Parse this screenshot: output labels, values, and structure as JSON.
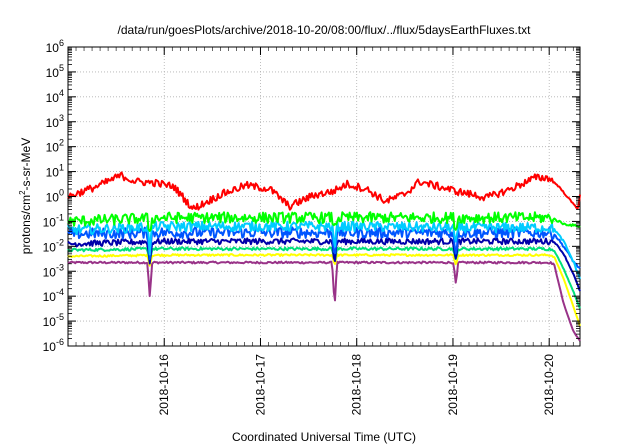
{
  "chart_data": {
    "type": "line",
    "title": "/data/run/goesPlots/archive/2018-10-20/08:00/flux/../flux/5daysEarthFluxes.txt",
    "xlabel": "Coordinated Universal Time (UTC)",
    "ylabel_base": "protons/cm",
    "ylabel_sup": "2",
    "ylabel_rest": "-s-sr-MeV",
    "y_scale": "log",
    "ylim_exp": [
      -6,
      6
    ],
    "y_tick_exps": [
      -6,
      -5,
      -4,
      -3,
      -2,
      -1,
      0,
      1,
      2,
      3,
      4,
      5,
      6
    ],
    "y_tick_base": "10",
    "xlim_days": [
      15.0,
      20.32
    ],
    "x_tick_labels": [
      {
        "day": 16,
        "label": "2018-10-16"
      },
      {
        "day": 17,
        "label": "2018-10-17"
      },
      {
        "day": 18,
        "label": "2018-10-18"
      },
      {
        "day": 19,
        "label": "2018-10-19"
      },
      {
        "day": 20,
        "label": "2018-10-20"
      }
    ],
    "grid": true,
    "series": [
      {
        "color": "#ff0000",
        "base_log": 0.1,
        "noise": 0.15,
        "keypoints": [
          [
            15.0,
            0.0
          ],
          [
            15.3,
            0.4
          ],
          [
            15.55,
            0.85
          ],
          [
            15.7,
            0.6
          ],
          [
            15.9,
            0.55
          ],
          [
            16.1,
            0.4
          ],
          [
            16.3,
            -0.5
          ],
          [
            16.6,
            0.1
          ],
          [
            16.85,
            0.45
          ],
          [
            17.1,
            0.3
          ],
          [
            17.3,
            -0.4
          ],
          [
            17.55,
            0.05
          ],
          [
            17.75,
            0.2
          ],
          [
            17.9,
            0.5
          ],
          [
            18.1,
            0.3
          ],
          [
            18.3,
            -0.2
          ],
          [
            18.5,
            0.1
          ],
          [
            18.65,
            0.6
          ],
          [
            18.85,
            0.4
          ],
          [
            19.05,
            0.2
          ],
          [
            19.35,
            -0.05
          ],
          [
            19.6,
            0.3
          ],
          [
            19.85,
            0.75
          ],
          [
            20.0,
            0.75
          ],
          [
            20.1,
            0.4
          ],
          [
            20.25,
            -0.3
          ],
          [
            20.3,
            -0.5
          ],
          [
            20.32,
            0.1
          ]
        ],
        "dips": []
      },
      {
        "color": "#00ff00",
        "base_log": -0.8,
        "noise": 0.22,
        "keypoints": [
          [
            15.0,
            -1.0
          ],
          [
            16.0,
            -0.85
          ],
          [
            17.0,
            -0.85
          ],
          [
            18.0,
            -0.85
          ],
          [
            19.0,
            -0.85
          ],
          [
            20.0,
            -0.85
          ],
          [
            20.05,
            -0.9
          ],
          [
            20.15,
            -1.1
          ],
          [
            20.32,
            -1.2
          ]
        ],
        "dips": [
          [
            15.85,
            -0.6
          ],
          [
            17.77,
            -0.5
          ],
          [
            19.03,
            -0.5
          ]
        ]
      },
      {
        "color": "#00ccff",
        "base_log": -1.3,
        "noise": 0.2,
        "keypoints": [
          [
            15.0,
            -1.35
          ],
          [
            16.0,
            -1.2
          ],
          [
            17.0,
            -1.2
          ],
          [
            18.0,
            -1.2
          ],
          [
            19.0,
            -1.25
          ],
          [
            20.0,
            -1.25
          ],
          [
            20.05,
            -1.3
          ],
          [
            20.15,
            -1.8
          ],
          [
            20.25,
            -2.6
          ],
          [
            20.32,
            -3.3
          ]
        ],
        "dips": [
          [
            15.85,
            -1.0
          ],
          [
            17.77,
            -0.9
          ],
          [
            19.03,
            -0.8
          ]
        ]
      },
      {
        "color": "#0055ff",
        "base_log": -1.5,
        "noise": 0.22,
        "keypoints": [
          [
            15.0,
            -1.5
          ],
          [
            16.0,
            -1.45
          ],
          [
            17.0,
            -1.45
          ],
          [
            18.0,
            -1.45
          ],
          [
            19.0,
            -1.45
          ],
          [
            20.0,
            -1.45
          ],
          [
            20.05,
            -1.5
          ],
          [
            20.15,
            -2.0
          ],
          [
            20.25,
            -2.6
          ],
          [
            20.32,
            -2.9
          ]
        ],
        "dips": [
          [
            15.85,
            -0.9
          ],
          [
            17.77,
            -0.9
          ],
          [
            19.03,
            -0.8
          ]
        ]
      },
      {
        "color": "#0000aa",
        "base_log": -1.85,
        "noise": 0.12,
        "keypoints": [
          [
            15.0,
            -1.9
          ],
          [
            16.0,
            -1.8
          ],
          [
            17.0,
            -1.8
          ],
          [
            18.0,
            -1.8
          ],
          [
            19.0,
            -1.8
          ],
          [
            20.0,
            -1.8
          ],
          [
            20.05,
            -1.8
          ],
          [
            20.15,
            -2.3
          ],
          [
            20.25,
            -3.1
          ],
          [
            20.32,
            -3.8
          ]
        ],
        "dips": [
          [
            15.85,
            -0.9
          ],
          [
            17.77,
            -0.9
          ],
          [
            19.03,
            -0.8
          ]
        ]
      },
      {
        "color": "#00e07a",
        "base_log": -2.1,
        "noise": 0.06,
        "keypoints": [
          [
            15.0,
            -2.15
          ],
          [
            16.0,
            -2.1
          ],
          [
            17.0,
            -2.1
          ],
          [
            18.0,
            -2.1
          ],
          [
            19.0,
            -2.1
          ],
          [
            20.0,
            -2.1
          ],
          [
            20.05,
            -2.15
          ],
          [
            20.15,
            -2.9
          ],
          [
            20.25,
            -3.8
          ],
          [
            20.32,
            -4.5
          ]
        ],
        "dips": [
          [
            15.85,
            -0.5
          ],
          [
            17.77,
            -0.5
          ],
          [
            19.03,
            -0.5
          ]
        ]
      },
      {
        "color": "#ffff00",
        "base_log": -2.35,
        "noise": 0.04,
        "keypoints": [
          [
            15.0,
            -2.4
          ],
          [
            16.0,
            -2.35
          ],
          [
            17.0,
            -2.35
          ],
          [
            18.0,
            -2.35
          ],
          [
            19.0,
            -2.35
          ],
          [
            20.0,
            -2.35
          ],
          [
            20.05,
            -2.4
          ],
          [
            20.15,
            -3.3
          ],
          [
            20.25,
            -4.4
          ],
          [
            20.32,
            -5.2
          ]
        ],
        "dips": [
          [
            15.85,
            -0.4
          ],
          [
            17.77,
            -0.4
          ],
          [
            19.03,
            -0.4
          ]
        ]
      },
      {
        "color": "#993388",
        "base_log": -2.65,
        "noise": 0.04,
        "keypoints": [
          [
            15.0,
            -2.65
          ],
          [
            16.0,
            -2.65
          ],
          [
            17.0,
            -2.65
          ],
          [
            18.0,
            -2.65
          ],
          [
            19.0,
            -2.65
          ],
          [
            20.0,
            -2.65
          ],
          [
            20.05,
            -2.7
          ],
          [
            20.15,
            -4.3
          ],
          [
            20.25,
            -5.4
          ],
          [
            20.32,
            -5.8
          ]
        ],
        "dips": [
          [
            15.85,
            -1.4
          ],
          [
            17.77,
            -1.8
          ],
          [
            19.03,
            -0.9
          ]
        ]
      }
    ]
  }
}
